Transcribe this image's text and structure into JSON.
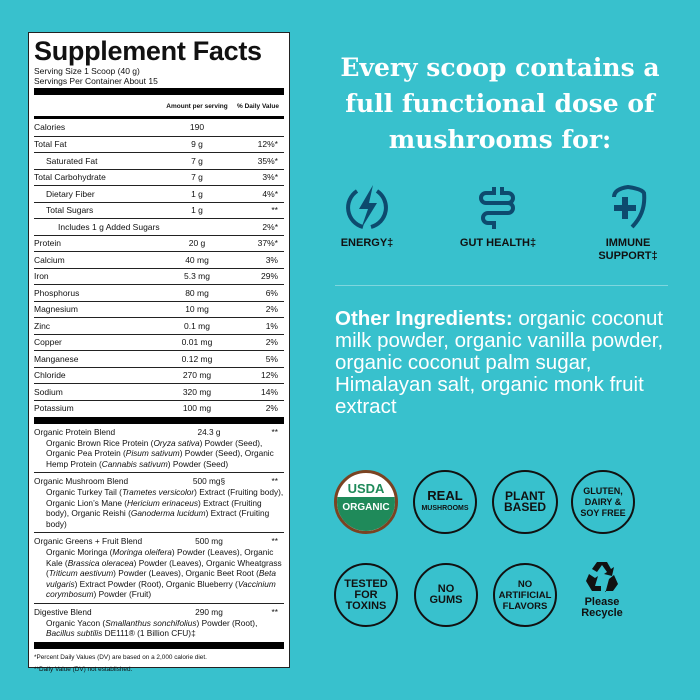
{
  "label": {
    "title": "Supplement Facts",
    "serving_size": "Serving Size 1 Scoop (40 g)",
    "servings": "Servings Per Container About 15",
    "col_amount": "Amount per serving",
    "col_dv": "% Daily Value",
    "rows": [
      {
        "name": "Calories",
        "amount": "190",
        "dv": "",
        "indent": 0
      },
      {
        "name": "Total Fat",
        "amount": "9 g",
        "dv": "12%*",
        "indent": 0
      },
      {
        "name": "Saturated Fat",
        "amount": "7 g",
        "dv": "35%*",
        "indent": 1
      },
      {
        "name": "Total Carbohydrate",
        "amount": "7 g",
        "dv": "3%*",
        "indent": 0
      },
      {
        "name": "Dietary Fiber",
        "amount": "1 g",
        "dv": "4%*",
        "indent": 1
      },
      {
        "name": "Total Sugars",
        "amount": "1 g",
        "dv": "**",
        "indent": 1
      },
      {
        "name": "Includes 1 g Added Sugars",
        "amount": "",
        "dv": "2%*",
        "indent": 2
      },
      {
        "name": "Protein",
        "amount": "20 g",
        "dv": "37%*",
        "indent": 0
      },
      {
        "name": "Calcium",
        "amount": "40 mg",
        "dv": "3%",
        "indent": 0
      },
      {
        "name": "Iron",
        "amount": "5.3 mg",
        "dv": "29%",
        "indent": 0
      },
      {
        "name": "Phosphorus",
        "amount": "80 mg",
        "dv": "6%",
        "indent": 0
      },
      {
        "name": "Magnesium",
        "amount": "10 mg",
        "dv": "2%",
        "indent": 0
      },
      {
        "name": "Zinc",
        "amount": "0.1 mg",
        "dv": "1%",
        "indent": 0
      },
      {
        "name": "Copper",
        "amount": "0.01 mg",
        "dv": "2%",
        "indent": 0
      },
      {
        "name": "Manganese",
        "amount": "0.12 mg",
        "dv": "5%",
        "indent": 0
      },
      {
        "name": "Chloride",
        "amount": "270 mg",
        "dv": "12%",
        "indent": 0
      },
      {
        "name": "Sodium",
        "amount": "320 mg",
        "dv": "14%",
        "indent": 0
      },
      {
        "name": "Potassium",
        "amount": "100 mg",
        "dv": "2%",
        "indent": 0
      }
    ],
    "blends": [
      {
        "name": "Organic Protein Blend",
        "amount": "24.3 g",
        "dv": "**",
        "detail": "Organic Brown Rice Protein (<i>Oryza sativa</i>) Powder (Seed), Organic Pea Protein (<i>Pisum sativum</i>) Powder (Seed), Organic Hemp Protein (<i>Cannabis sativum</i>) Powder (Seed)"
      },
      {
        "name": "Organic Mushroom Blend",
        "amount": "500 mg§",
        "dv": "**",
        "detail": "Organic Turkey Tail (<i>Trametes versicolor</i>) Extract (Fruiting body), Organic Lion’s Mane (<i>Hericium erinaceus</i>) Extract (Fruiting body), Organic Reishi (<i>Ganoderma lucidum</i>) Extract (Fruiting body)"
      },
      {
        "name": "Organic Greens + Fruit Blend",
        "amount": "500 mg",
        "dv": "**",
        "detail": "Organic Moringa (<i>Moringa oleifera</i>) Powder (Leaves), Organic Kale (<i>Brassica oleracea</i>) Powder (Leaves), Organic Wheatgrass (<i>Triticum aestivum</i>) Powder (Leaves), Organic Beet Root (<i>Beta vulgaris</i>) Extract Powder (Root), Organic Blueberry (<i>Vaccinium corymbosum</i>) Powder (Fruit)"
      },
      {
        "name": "Digestive Blend",
        "amount": "290 mg",
        "dv": "**",
        "detail": "Organic Yacon (<i>Smallanthus sonchifolius</i>) Powder (Root), <i>Bacillus subtilis</i> DE111® (1 Billion CFU)‡"
      }
    ],
    "footnote1": "*Percent Daily Values (DV) are based on a 2,000 calorie diet.",
    "footnote2": "**Daily Value (DV) not established."
  },
  "headline": "Every scoop contains a full functional dose of mushrooms for:",
  "benefits": [
    {
      "label": "ENERGY‡",
      "icon": "lightning-icon"
    },
    {
      "label": "GUT HEALTH‡",
      "icon": "intestine-icon"
    },
    {
      "label": "IMMUNE SUPPORT‡",
      "icon": "shield-plus-icon"
    }
  ],
  "ingredients": {
    "heading": "Other Ingredients:",
    "text": "organic coconut milk powder, organic vanilla powder, organic coconut palm sugar, Himalayan salt, organic monk fruit extract"
  },
  "badges": {
    "usda_top": "USDA",
    "usda_bottom": "ORGANIC",
    "real": "REAL",
    "mushrooms": "MUSHROOMS",
    "plant": "PLANT BASED",
    "gluten": "GLUTEN, DAIRY & SOY FREE",
    "tested": "TESTED FOR TOXINS",
    "gums": "NO GUMS",
    "artificial": "NO ARTIFICIAL FLAVORS",
    "recycle": "Please Recycle"
  },
  "colors": {
    "background": "#38c1cd",
    "icon": "#0d4a6e",
    "usda_green": "#1f8a5a",
    "usda_brown": "#7a4322"
  }
}
